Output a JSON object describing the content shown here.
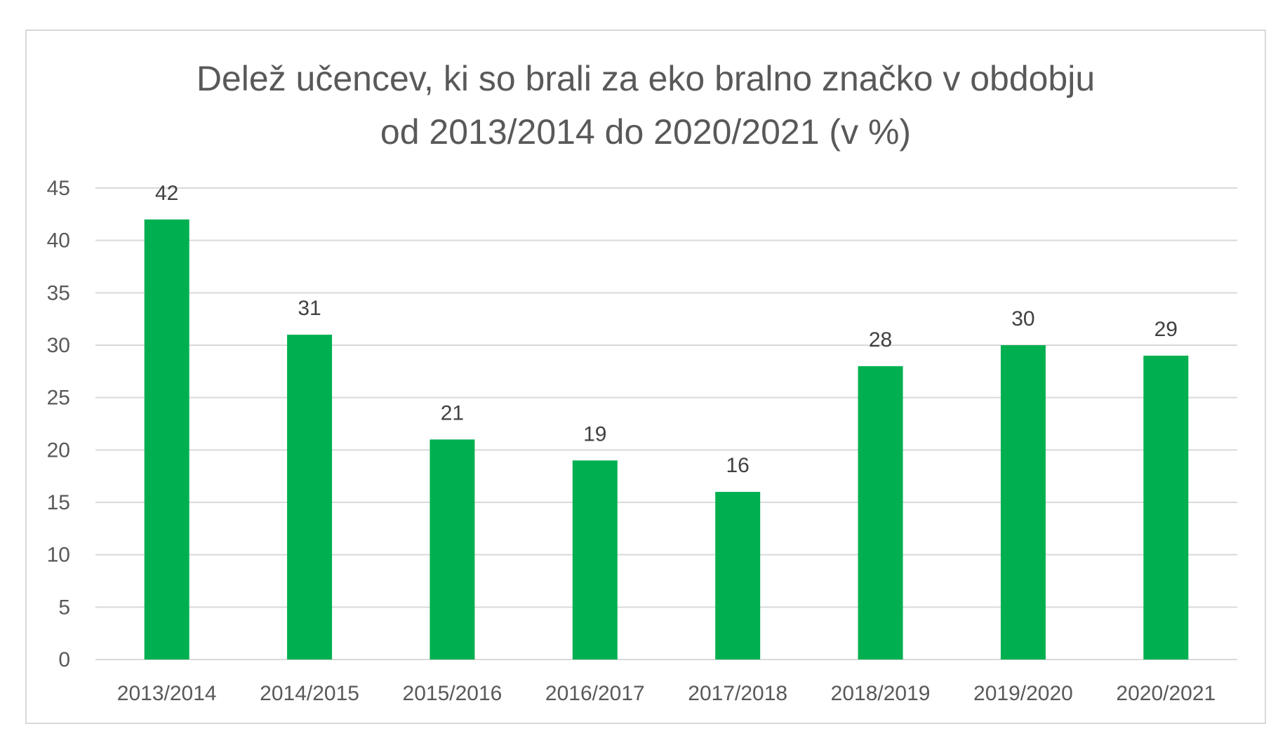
{
  "chart_data": {
    "type": "bar",
    "title_lines": [
      "Delež učencev, ki so brali za eko bralno značko v obdobju",
      "od 2013/2014 do 2020/2021 (v %)"
    ],
    "categories": [
      "2013/2014",
      "2014/2015",
      "2015/2016",
      "2016/2017",
      "2017/2018",
      "2018/2019",
      "2019/2020",
      "2020/2021"
    ],
    "values": [
      42,
      31,
      21,
      19,
      16,
      28,
      30,
      29
    ],
    "data_labels": [
      "42",
      "31",
      "21",
      "19",
      "16",
      "28",
      "30",
      "29"
    ],
    "ylim": [
      0,
      45
    ],
    "yticks": [
      0,
      5,
      10,
      15,
      20,
      25,
      30,
      35,
      40,
      45
    ],
    "grid": true,
    "legend": "none",
    "colors": {
      "bar": "#00b050",
      "grid": "#d9d9d9",
      "tick_text": "#595959",
      "label_text": "#404040"
    }
  }
}
